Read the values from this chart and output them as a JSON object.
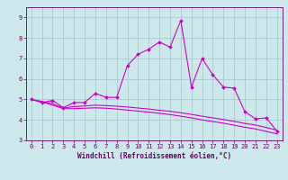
{
  "title": "",
  "xlabel": "Windchill (Refroidissement éolien,°C)",
  "ylabel": "",
  "bg_color": "#cce8ea",
  "line_color": "#cc00cc",
  "grid_color": "#aacccc",
  "xlim": [
    -0.5,
    23.5
  ],
  "ylim": [
    3.0,
    9.5
  ],
  "yticks": [
    3,
    4,
    5,
    6,
    7,
    8,
    9
  ],
  "xticks": [
    0,
    1,
    2,
    3,
    4,
    5,
    6,
    7,
    8,
    9,
    10,
    11,
    12,
    13,
    14,
    15,
    16,
    17,
    18,
    19,
    20,
    21,
    22,
    23
  ],
  "line1_x": [
    0,
    1,
    2,
    3,
    4,
    5,
    6,
    7,
    8,
    9,
    10,
    11,
    12,
    13,
    14,
    15,
    16,
    17,
    18,
    19,
    20,
    21,
    22,
    23
  ],
  "line1_y": [
    5.0,
    4.85,
    4.95,
    4.6,
    4.85,
    4.85,
    5.3,
    5.1,
    5.1,
    6.65,
    7.2,
    7.45,
    7.8,
    7.55,
    8.85,
    5.6,
    7.0,
    6.2,
    5.6,
    5.55,
    4.4,
    4.05,
    4.1,
    3.45
  ],
  "line2_x": [
    0,
    1,
    2,
    3,
    4,
    5,
    6,
    7,
    8,
    9,
    10,
    11,
    12,
    13,
    14,
    15,
    16,
    17,
    18,
    19,
    20,
    21,
    22,
    23
  ],
  "line2_y": [
    5.0,
    4.9,
    4.78,
    4.58,
    4.65,
    4.68,
    4.72,
    4.7,
    4.67,
    4.63,
    4.58,
    4.53,
    4.47,
    4.42,
    4.35,
    4.27,
    4.18,
    4.1,
    4.02,
    3.93,
    3.83,
    3.75,
    3.63,
    3.5
  ],
  "line3_x": [
    0,
    1,
    2,
    3,
    4,
    5,
    6,
    7,
    8,
    9,
    10,
    11,
    12,
    13,
    14,
    15,
    16,
    17,
    18,
    19,
    20,
    21,
    22,
    23
  ],
  "line3_y": [
    5.0,
    4.88,
    4.72,
    4.55,
    4.55,
    4.57,
    4.59,
    4.57,
    4.53,
    4.48,
    4.43,
    4.38,
    4.32,
    4.26,
    4.18,
    4.1,
    4.0,
    3.92,
    3.84,
    3.74,
    3.64,
    3.56,
    3.44,
    3.32
  ],
  "tick_color": "#660066",
  "spine_color": "#660066",
  "tick_fontsize": 5,
  "xlabel_fontsize": 5.5
}
